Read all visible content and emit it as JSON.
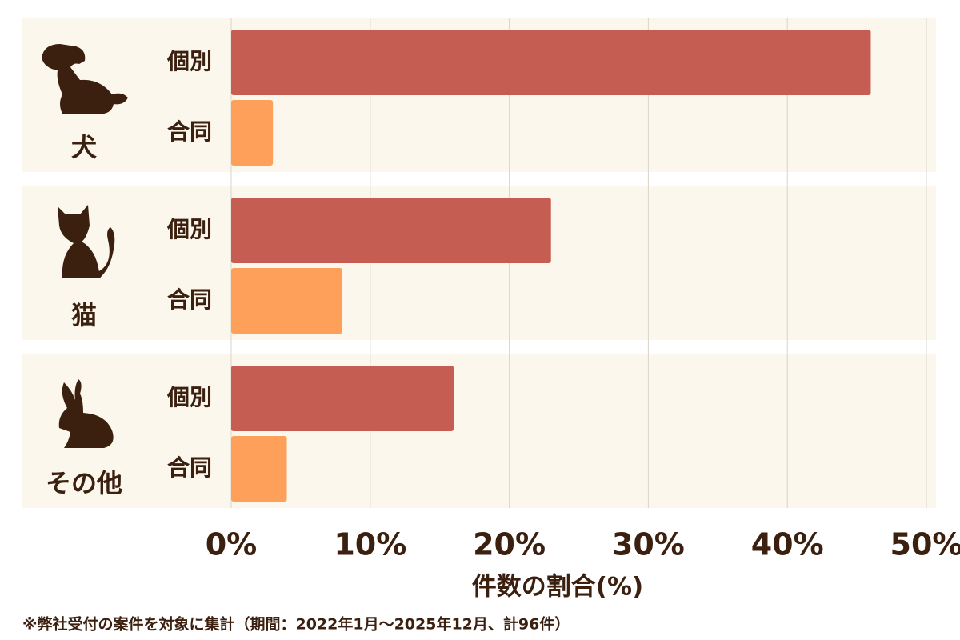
{
  "chart_data": {
    "type": "bar",
    "orientation": "horizontal",
    "categories": [
      "犬",
      "猫",
      "その他"
    ],
    "series": [
      {
        "name": "個別",
        "color": "#c65d52",
        "values": [
          46,
          23,
          16
        ]
      },
      {
        "name": "合同",
        "color": "#ffa05a",
        "values": [
          3,
          8,
          4
        ]
      }
    ],
    "xlim": [
      0,
      50
    ],
    "xticks": [
      {
        "value": 0,
        "label": "0%"
      },
      {
        "value": 10,
        "label": "10%"
      },
      {
        "value": 20,
        "label": "20%"
      },
      {
        "value": 30,
        "label": "30%"
      },
      {
        "value": 40,
        "label": "40%"
      },
      {
        "value": 50,
        "label": "50%"
      }
    ],
    "xlabel": "件数の割合(%)",
    "grid": true,
    "footnote": "※弊社受付の案件を対象に集計（期間：2022年1月～2025年12月、計96件）"
  }
}
